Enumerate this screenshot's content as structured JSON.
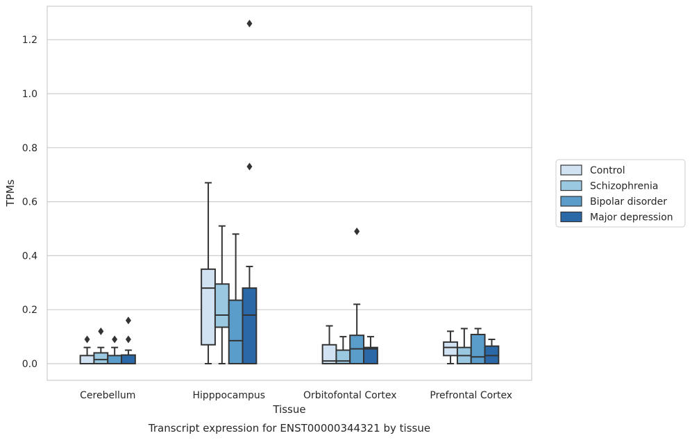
{
  "chart_data": {
    "type": "boxplot",
    "title": "Transcript expression for ENST00000344321 by tissue",
    "xlabel": "Tissue",
    "ylabel": "TPMs",
    "ylim": [
      -0.06,
      1.32
    ],
    "yticks": [
      0.0,
      0.2,
      0.4,
      0.6,
      0.8,
      1.0,
      1.2
    ],
    "ytick_labels": [
      "0.0",
      "0.2",
      "0.4",
      "0.6",
      "0.8",
      "1.0",
      "1.2"
    ],
    "grid": "horizontal",
    "legend_position": "right",
    "categories": [
      "Cerebellum",
      "Hipppocampus",
      "Orbitofontal Cortex",
      "Prefrontal Cortex"
    ],
    "series": [
      {
        "name": "Control",
        "color": "#d1e2f2",
        "boxes": [
          {
            "whislo": 0.0,
            "q1": 0.0,
            "median": 0.0,
            "q3": 0.03,
            "whishi": 0.06,
            "fliers": [
              0.09
            ]
          },
          {
            "whislo": 0.0,
            "q1": 0.07,
            "median": 0.28,
            "q3": 0.35,
            "whishi": 0.67,
            "fliers": []
          },
          {
            "whislo": 0.0,
            "q1": 0.0,
            "median": 0.01,
            "q3": 0.07,
            "whishi": 0.14,
            "fliers": []
          },
          {
            "whislo": 0.0,
            "q1": 0.03,
            "median": 0.06,
            "q3": 0.08,
            "whishi": 0.12,
            "fliers": []
          }
        ]
      },
      {
        "name": "Schizophrenia",
        "color": "#9ac8e0",
        "boxes": [
          {
            "whislo": 0.0,
            "q1": 0.0,
            "median": 0.015,
            "q3": 0.04,
            "whishi": 0.06,
            "fliers": [
              0.12
            ]
          },
          {
            "whislo": 0.0,
            "q1": 0.135,
            "median": 0.18,
            "q3": 0.295,
            "whishi": 0.51,
            "fliers": []
          },
          {
            "whislo": 0.0,
            "q1": 0.0,
            "median": 0.01,
            "q3": 0.05,
            "whishi": 0.1,
            "fliers": []
          },
          {
            "whislo": 0.0,
            "q1": 0.0,
            "median": 0.03,
            "q3": 0.06,
            "whishi": 0.13,
            "fliers": []
          }
        ]
      },
      {
        "name": "Bipolar disorder",
        "color": "#5a9dcb",
        "boxes": [
          {
            "whislo": 0.0,
            "q1": 0.0,
            "median": 0.0,
            "q3": 0.03,
            "whishi": 0.06,
            "fliers": [
              0.09
            ]
          },
          {
            "whislo": 0.0,
            "q1": 0.0,
            "median": 0.085,
            "q3": 0.235,
            "whishi": 0.48,
            "fliers": []
          },
          {
            "whislo": 0.0,
            "q1": 0.0,
            "median": 0.055,
            "q3": 0.105,
            "whishi": 0.22,
            "fliers": [
              0.49
            ]
          },
          {
            "whislo": 0.0,
            "q1": 0.0,
            "median": 0.025,
            "q3": 0.108,
            "whishi": 0.13,
            "fliers": []
          }
        ]
      },
      {
        "name": "Major depression",
        "color": "#2b68a8",
        "boxes": [
          {
            "whislo": 0.0,
            "q1": 0.0,
            "median": 0.0,
            "q3": 0.032,
            "whishi": 0.05,
            "fliers": [
              0.09,
              0.16
            ]
          },
          {
            "whislo": 0.0,
            "q1": 0.0,
            "median": 0.18,
            "q3": 0.28,
            "whishi": 0.36,
            "fliers": [
              0.73,
              1.26
            ]
          },
          {
            "whislo": 0.0,
            "q1": 0.0,
            "median": 0.055,
            "q3": 0.06,
            "whishi": 0.1,
            "fliers": []
          },
          {
            "whislo": 0.0,
            "q1": 0.0,
            "median": 0.03,
            "q3": 0.065,
            "whishi": 0.09,
            "fliers": []
          }
        ]
      }
    ]
  }
}
